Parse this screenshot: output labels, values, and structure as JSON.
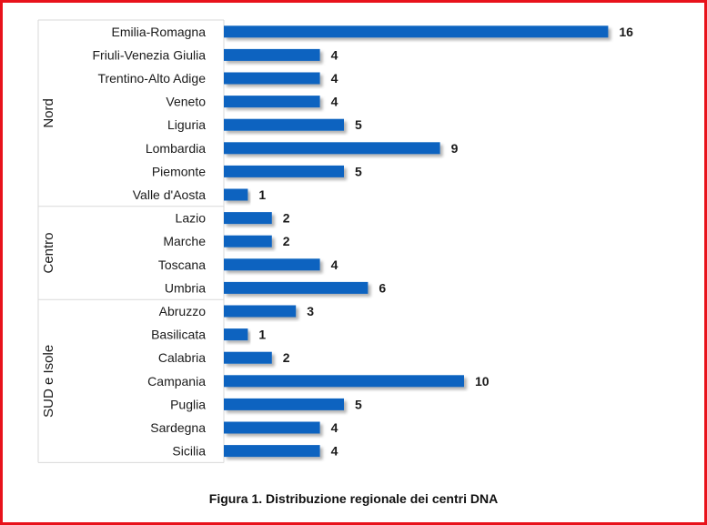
{
  "caption": "Figura 1. Distribuzione regionale dei centri DNA",
  "colors": {
    "bar": "#0f64c0",
    "frame": "#e8121b",
    "divider": "#d9d9d9"
  },
  "chart_data": {
    "type": "bar",
    "orientation": "horizontal",
    "title": "Figura 1. Distribuzione regionale dei centri DNA",
    "xlabel": "",
    "ylabel": "",
    "xlim": [
      0,
      16
    ],
    "grid": false,
    "legend": "none",
    "data_labels": true,
    "categories": [
      "Emilia-Romagna",
      "Friuli-Venezia Giulia",
      "Trentino-Alto Adige",
      "Veneto",
      "Liguria",
      "Lombardia",
      "Piemonte",
      "Valle d'Aosta",
      "Lazio",
      "Marche",
      "Toscana",
      "Umbria",
      "Abruzzo",
      "Basilicata",
      "Calabria",
      "Campania",
      "Puglia",
      "Sardegna",
      "Sicilia"
    ],
    "values": [
      16,
      4,
      4,
      4,
      5,
      9,
      5,
      1,
      2,
      2,
      4,
      6,
      3,
      1,
      2,
      10,
      5,
      4,
      4
    ],
    "groups": [
      {
        "name": "Nord",
        "items": 8
      },
      {
        "name": "Centro",
        "items": 4
      },
      {
        "name": "SUD e Isole",
        "items": 7
      }
    ]
  }
}
